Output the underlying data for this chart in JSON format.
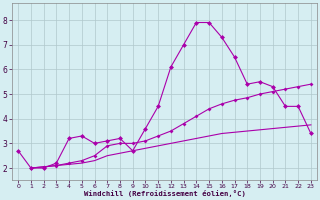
{
  "xlabel": "Windchill (Refroidissement éolien,°C)",
  "background_color": "#d6eef2",
  "line_color": "#aa00aa",
  "grid_color": "#b0c8cc",
  "xlim": [
    -0.5,
    23.5
  ],
  "ylim": [
    1.5,
    8.7
  ],
  "xticks": [
    0,
    1,
    2,
    3,
    4,
    5,
    6,
    7,
    8,
    9,
    10,
    11,
    12,
    13,
    14,
    15,
    16,
    17,
    18,
    19,
    20,
    21,
    22,
    23
  ],
  "yticks": [
    2,
    3,
    4,
    5,
    6,
    7,
    8
  ],
  "line1_x": [
    0,
    1,
    2,
    3,
    4,
    5,
    6,
    7,
    8,
    9,
    10,
    11,
    12,
    13,
    14,
    15,
    16,
    17,
    18,
    19,
    20,
    21,
    22,
    23
  ],
  "line1_y": [
    2.7,
    2.0,
    2.0,
    2.2,
    3.2,
    3.3,
    3.0,
    3.1,
    3.2,
    2.7,
    3.6,
    4.5,
    6.1,
    7.0,
    7.9,
    7.9,
    7.3,
    6.5,
    5.4,
    5.5,
    5.3,
    4.5,
    4.5,
    3.4
  ],
  "line2_x": [
    1,
    2,
    3,
    4,
    5,
    6,
    7,
    8,
    9,
    10,
    11,
    12,
    13,
    14,
    15,
    16,
    17,
    18,
    19,
    20,
    21,
    22,
    23
  ],
  "line2_y": [
    2.0,
    2.05,
    2.1,
    2.2,
    2.3,
    2.5,
    2.9,
    3.0,
    3.0,
    3.1,
    3.3,
    3.5,
    3.8,
    4.1,
    4.4,
    4.6,
    4.75,
    4.85,
    5.0,
    5.1,
    5.2,
    5.3,
    5.4
  ],
  "line3_x": [
    1,
    2,
    3,
    4,
    5,
    6,
    7,
    8,
    9,
    10,
    11,
    12,
    13,
    14,
    15,
    16,
    17,
    18,
    19,
    20,
    21,
    22,
    23
  ],
  "line3_y": [
    2.0,
    2.05,
    2.1,
    2.15,
    2.2,
    2.3,
    2.5,
    2.6,
    2.7,
    2.8,
    2.9,
    3.0,
    3.1,
    3.2,
    3.3,
    3.4,
    3.45,
    3.5,
    3.55,
    3.6,
    3.65,
    3.7,
    3.75
  ]
}
